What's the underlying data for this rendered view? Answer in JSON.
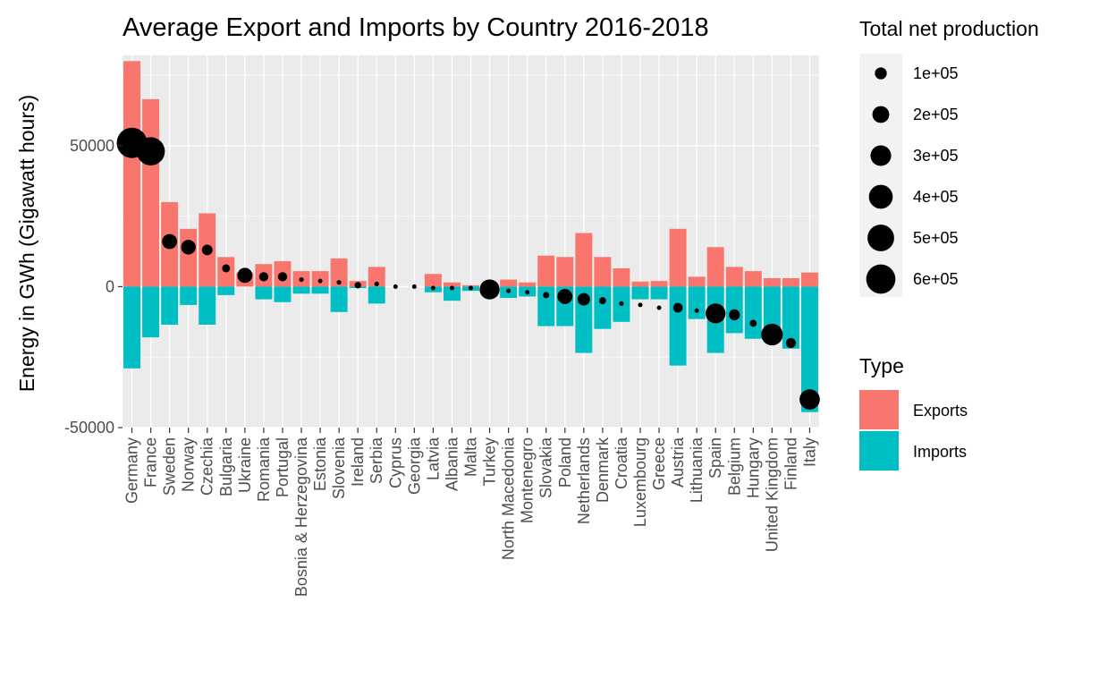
{
  "chart_data": {
    "type": "bar",
    "title": "Average Export and Imports by Country 2016-2018",
    "xlabel": "",
    "ylabel": "Energy in GWh (Gigawatt hours)",
    "ylim": [
      -50000,
      82000
    ],
    "yticks": [
      -50000,
      0,
      50000
    ],
    "ytick_labels": [
      "-50000",
      "0",
      "50000"
    ],
    "grid": true,
    "categories": [
      "Germany",
      "France",
      "Sweden",
      "Norway",
      "Czechia",
      "Bulgaria",
      "Ukraine",
      "Romania",
      "Portugal",
      "Bosnia & Herzegovina",
      "Estonia",
      "Slovenia",
      "Ireland",
      "Serbia",
      "Cyprus",
      "Georgia",
      "Latvia",
      "Albania",
      "Malta",
      "Turkey",
      "North Macedonia",
      "Montenegro",
      "Slovakia",
      "Poland",
      "Netherlands",
      "Denmark",
      "Croatia",
      "Luxembourg",
      "Greece",
      "Austria",
      "Lithuania",
      "Spain",
      "Belgium",
      "Hungary",
      "United Kingdom",
      "Finland",
      "Italy"
    ],
    "series": [
      {
        "name": "Exports",
        "color": "#F8766D",
        "values": [
          80000,
          66500,
          30000,
          20500,
          26000,
          10500,
          5000,
          8000,
          9000,
          5500,
          5500,
          10000,
          2000,
          7000,
          0,
          0,
          4500,
          1500,
          500,
          0,
          2500,
          1500,
          11000,
          10500,
          19000,
          10500,
          6500,
          1800,
          2000,
          20500,
          3500,
          14000,
          7000,
          5500,
          3000,
          3000,
          5000
        ]
      },
      {
        "name": "Imports",
        "color": "#00BFC4",
        "values": [
          -29000,
          -18000,
          -13500,
          -6500,
          -13500,
          -3000,
          0,
          -4500,
          -5500,
          -2500,
          -2500,
          -9000,
          -500,
          -6000,
          0,
          0,
          -2000,
          -5000,
          -1500,
          -1200,
          -4000,
          -3500,
          -14000,
          -14000,
          -23500,
          -15000,
          -12500,
          -4500,
          -4500,
          -28000,
          -11500,
          -23500,
          -16500,
          -18500,
          -17000,
          -22000,
          -44500
        ]
      }
    ],
    "points": {
      "name": "Total net production",
      "y": [
        51000,
        48000,
        16000,
        14000,
        13000,
        6500,
        4000,
        3500,
        3500,
        2500,
        2000,
        1500,
        500,
        1000,
        0,
        0,
        -500,
        -500,
        -500,
        -1000,
        -1500,
        -2000,
        -3000,
        -3500,
        -4500,
        -5000,
        -6000,
        -6500,
        -7500,
        -7500,
        -8500,
        -9500,
        -10000,
        -13000,
        -17000,
        -20000,
        -40000
      ],
      "sizes": [
        650000,
        560000,
        160000,
        150000,
        80000,
        45000,
        160000,
        60000,
        60000,
        15000,
        12000,
        15000,
        30000,
        15000,
        5000,
        12000,
        10000,
        5000,
        2000,
        280000,
        5000,
        3000,
        28000,
        160000,
        110000,
        35000,
        15000,
        2500,
        10000,
        65000,
        3000,
        280000,
        85000,
        35000,
        330000,
        70000,
        290000
      ]
    }
  },
  "legend_size": {
    "title": "Total net production",
    "items": [
      {
        "label": "1e+05",
        "value": 100000
      },
      {
        "label": "2e+05",
        "value": 200000
      },
      {
        "label": "3e+05",
        "value": 300000
      },
      {
        "label": "4e+05",
        "value": 400000
      },
      {
        "label": "5e+05",
        "value": 500000
      },
      {
        "label": "6e+05",
        "value": 600000
      }
    ]
  },
  "legend_type": {
    "title": "Type",
    "items": [
      {
        "label": "Exports",
        "color": "#F8766D"
      },
      {
        "label": "Imports",
        "color": "#00BFC4"
      }
    ]
  },
  "style": {
    "panel_bg": "#EBEBEB",
    "grid_major": "#FFFFFF",
    "point_color": "#000000",
    "tick_color": "#333333"
  }
}
